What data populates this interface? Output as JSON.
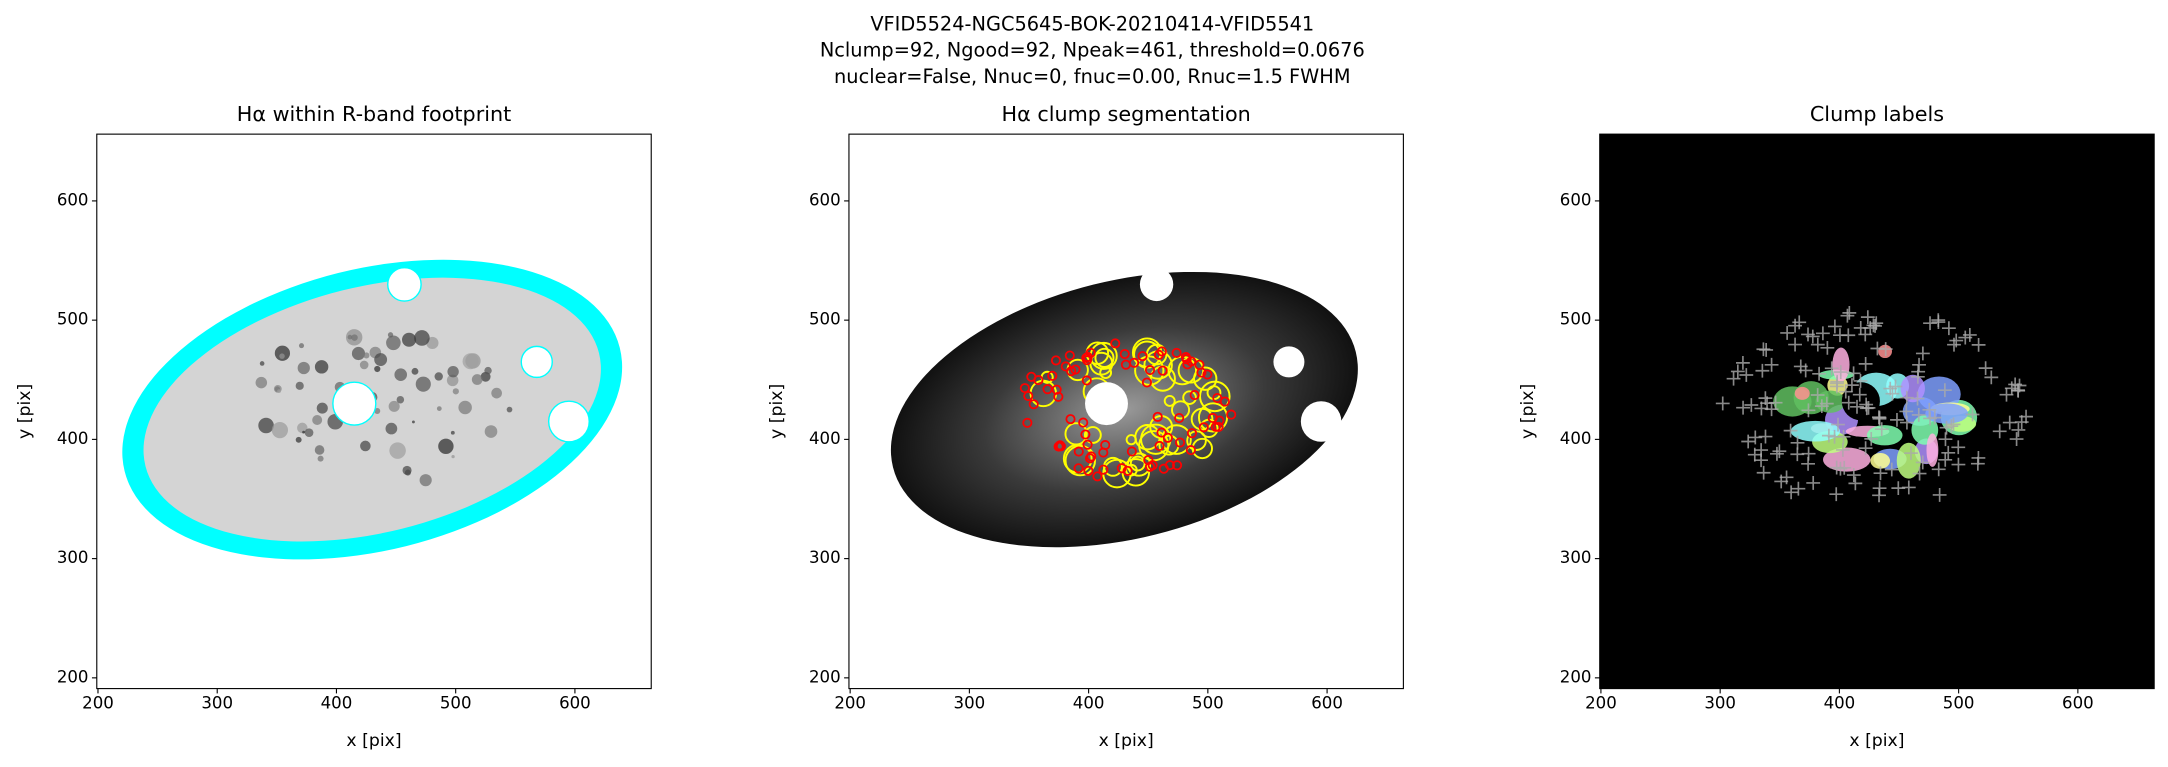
{
  "figure_title": [
    "VFID5524-NGC5645-BOK-20210414-VFID5541",
    "Nclump=92, Ngood=92, Npeak=461, threshold=0.0676",
    "nuclear=False, Nnuc=0, fnuc=0.00, Rnuc=1.5 FWHM"
  ],
  "chart_data": [
    {
      "type": "image",
      "title": "Hα within R-band footprint",
      "xlabel": "x [pix]",
      "ylabel": "y [pix]",
      "xlim": [
        199,
        664
      ],
      "ylim": [
        191,
        656
      ],
      "xticks": [
        200,
        300,
        400,
        500,
        600
      ],
      "yticks": [
        200,
        300,
        400,
        500,
        600
      ]
    },
    {
      "type": "image",
      "title": "Hα clump segmentation",
      "xlabel": "x [pix]",
      "ylabel": "y [pix]",
      "xlim": [
        199,
        664
      ],
      "ylim": [
        191,
        656
      ],
      "xticks": [
        200,
        300,
        400,
        500,
        600
      ],
      "yticks": [
        200,
        300,
        400,
        500,
        600
      ]
    },
    {
      "type": "image",
      "title": "Clump labels",
      "xlabel": "x [pix]",
      "ylabel": "y [pix]",
      "xlim": [
        199,
        664
      ],
      "ylim": [
        191,
        656
      ],
      "xticks": [
        200,
        300,
        400,
        500,
        600
      ],
      "yticks": [
        200,
        300,
        400,
        500,
        600
      ]
    }
  ]
}
